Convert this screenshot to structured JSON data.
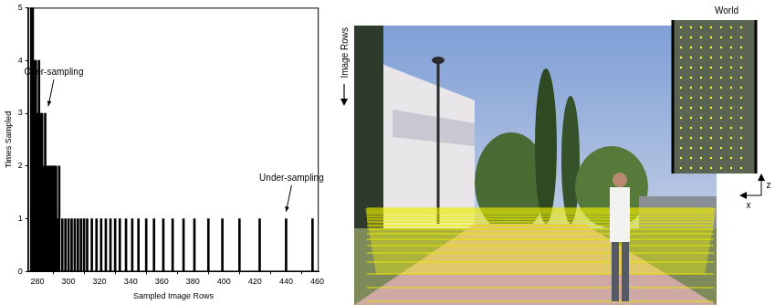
{
  "chart_data": {
    "type": "bar",
    "x_label": "Sampled Image Rows",
    "y_label": "Times Sampled",
    "x": [
      276,
      277,
      278,
      279,
      280,
      281,
      282,
      283,
      284,
      285,
      286,
      287,
      288,
      289,
      290,
      291,
      292,
      293,
      294,
      296,
      298,
      300,
      302,
      304,
      306,
      308,
      310,
      312,
      315,
      318,
      321,
      324,
      327,
      330,
      333,
      337,
      341,
      345,
      350,
      355,
      361,
      367,
      374,
      381,
      390,
      399,
      410,
      423,
      440,
      457
    ],
    "values": [
      5,
      5,
      4,
      4,
      3,
      4,
      3,
      3,
      2,
      3,
      2,
      2,
      2,
      2,
      2,
      2,
      2,
      1,
      2,
      1,
      1,
      1,
      1,
      1,
      1,
      1,
      1,
      1,
      1,
      1,
      1,
      1,
      1,
      1,
      1,
      1,
      1,
      1,
      1,
      1,
      1,
      1,
      1,
      1,
      1,
      1,
      1,
      1,
      1,
      1
    ],
    "color": "#000000",
    "xlim": [
      274,
      461
    ],
    "xticks": [
      280,
      300,
      320,
      340,
      360,
      380,
      400,
      420,
      440,
      460
    ],
    "ylim": [
      0,
      5
    ],
    "yticks": [
      0,
      1,
      2,
      3,
      4,
      5
    ],
    "grid": false,
    "annotations": [
      {
        "text": "Over-sampling",
        "x": 287,
        "y": 3.1
      },
      {
        "text": "Under-sampling",
        "x": 440,
        "y": 1.1
      }
    ]
  },
  "image_panel": {
    "row_axis_label": "Image Rows",
    "inset_title": "World",
    "inset_axes": [
      "x",
      "z"
    ]
  }
}
